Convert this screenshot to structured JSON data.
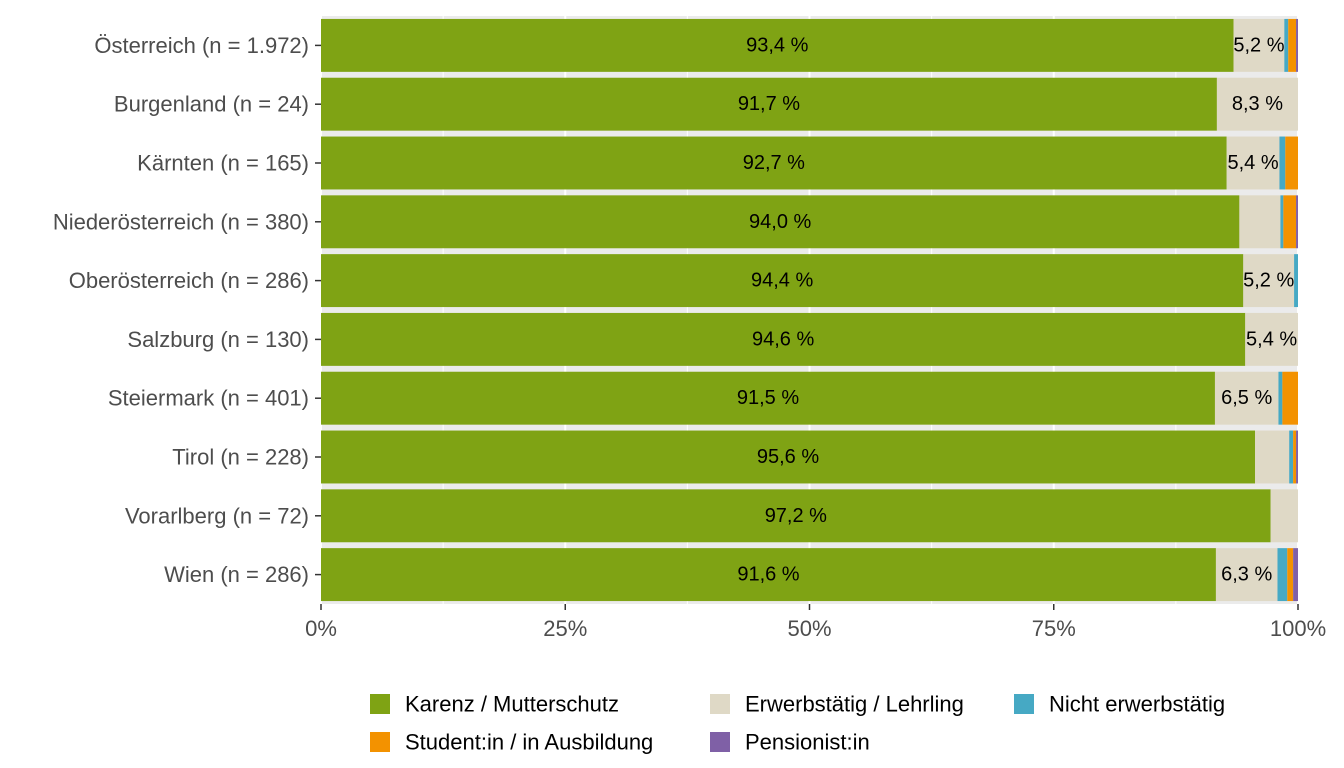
{
  "chart_data": {
    "type": "bar",
    "orientation": "horizontal",
    "stacked": true,
    "percent": true,
    "categories": [
      "Österreich (n = 1.972)",
      "Burgenland (n = 24)",
      "Kärnten (n = 165)",
      "Niederösterreich (n = 380)",
      "Oberösterreich (n = 286)",
      "Salzburg (n = 130)",
      "Steiermark (n = 401)",
      "Tirol (n = 228)",
      "Vorarlberg (n = 72)",
      "Wien (n = 286)"
    ],
    "series": [
      {
        "name": "Karenz / Mutterschutz",
        "color": "#7fa314",
        "values": [
          93.4,
          91.7,
          92.7,
          94.0,
          94.4,
          94.6,
          91.5,
          95.6,
          97.2,
          91.6
        ],
        "labels": [
          "93,4 %",
          "91,7 %",
          "92,7 %",
          "94,0 %",
          "94,4 %",
          "94,6 %",
          "91,5 %",
          "95,6 %",
          "97,2 %",
          "91,6 %"
        ]
      },
      {
        "name": "Erwerbstätig / Lehrling",
        "color": "#dfd9c6",
        "values": [
          5.2,
          8.3,
          5.4,
          4.2,
          5.2,
          5.4,
          6.5,
          3.5,
          2.8,
          6.3
        ],
        "labels": [
          "5,2 %",
          "8,3 %",
          "5,4 %",
          "",
          "5,2 %",
          "5,4 %",
          "6,5 %",
          "",
          "",
          "6,3 %"
        ]
      },
      {
        "name": "Nicht erwerbstätig",
        "color": "#46a9c4",
        "values": [
          0.4,
          0.0,
          0.6,
          0.3,
          0.4,
          0.0,
          0.4,
          0.4,
          0.0,
          1.0
        ],
        "labels": [
          "",
          "",
          "",
          "",
          "",
          "",
          "",
          "",
          "",
          ""
        ]
      },
      {
        "name": "Student:in / in Ausbildung",
        "color": "#f39200",
        "values": [
          0.8,
          0.0,
          1.3,
          1.3,
          0.0,
          0.0,
          1.6,
          0.3,
          0.0,
          0.6
        ],
        "labels": [
          "",
          "",
          "",
          "",
          "",
          "",
          "",
          "",
          "",
          ""
        ]
      },
      {
        "name": "Pensionist:in",
        "color": "#7f60a6",
        "values": [
          0.2,
          0.0,
          0.0,
          0.2,
          0.0,
          0.0,
          0.0,
          0.2,
          0.0,
          0.5
        ],
        "labels": [
          "",
          "",
          "",
          "",
          "",
          "",
          "",
          "",
          "",
          ""
        ]
      }
    ],
    "xlim": [
      0,
      100
    ],
    "x_ticks": [
      "0%",
      "25%",
      "50%",
      "75%",
      "100%"
    ],
    "x_tick_values": [
      0,
      25,
      50,
      75,
      100
    ],
    "grid": true,
    "legend_position": "bottom",
    "legend_order": [
      "Karenz / Mutterschutz",
      "Erwerbstätig / Lehrling",
      "Nicht erwerbstätig",
      "Student:in / in Ausbildung",
      "Pensionist:in"
    ],
    "panel_background": "#ebebeb",
    "gridline_color": "#ffffff"
  }
}
